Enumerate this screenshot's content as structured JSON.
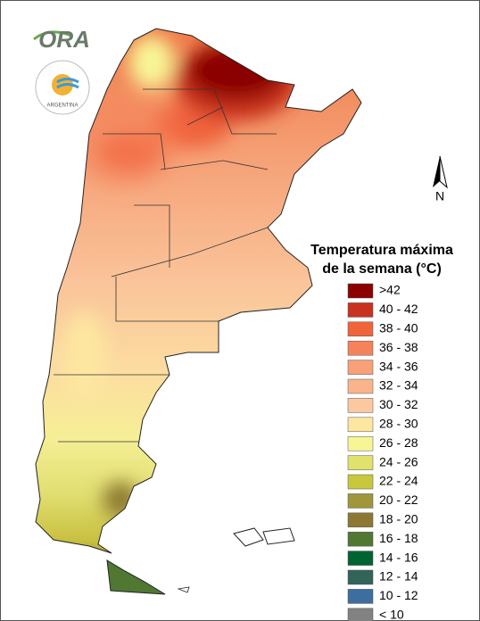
{
  "logo": {
    "text": "ORA",
    "seal_text": "ARGENTINA"
  },
  "legend": {
    "title": [
      "Temperatura máxima",
      "de la semana (°C)"
    ],
    "items": [
      {
        "label": ">42",
        "color": "#8b0000"
      },
      {
        "label": "40 - 42",
        "color": "#c8321e"
      },
      {
        "label": "38 - 40",
        "color": "#f0643c"
      },
      {
        "label": "36 - 38",
        "color": "#f5825a"
      },
      {
        "label": "34 - 36",
        "color": "#f8a078"
      },
      {
        "label": "32 - 34",
        "color": "#fab48c"
      },
      {
        "label": "30 - 32",
        "color": "#fcc8a0"
      },
      {
        "label": "28 - 30",
        "color": "#fde6a0"
      },
      {
        "label": "26 - 28",
        "color": "#f8f596"
      },
      {
        "label": "24 - 26",
        "color": "#e1e16e"
      },
      {
        "label": "22 - 24",
        "color": "#c8c83c"
      },
      {
        "label": "20 - 22",
        "color": "#a0963c"
      },
      {
        "label": "18 - 20",
        "color": "#8c7832"
      },
      {
        "label": "16 - 18",
        "color": "#507832"
      },
      {
        "label": "14 - 16",
        "color": "#006432"
      },
      {
        "label": "12 - 14",
        "color": "#32645a"
      },
      {
        "label": "10 - 12",
        "color": "#3c6ea0"
      },
      {
        "label": "< 10",
        "color": "#828282"
      }
    ]
  },
  "compass": {
    "label": "N"
  }
}
